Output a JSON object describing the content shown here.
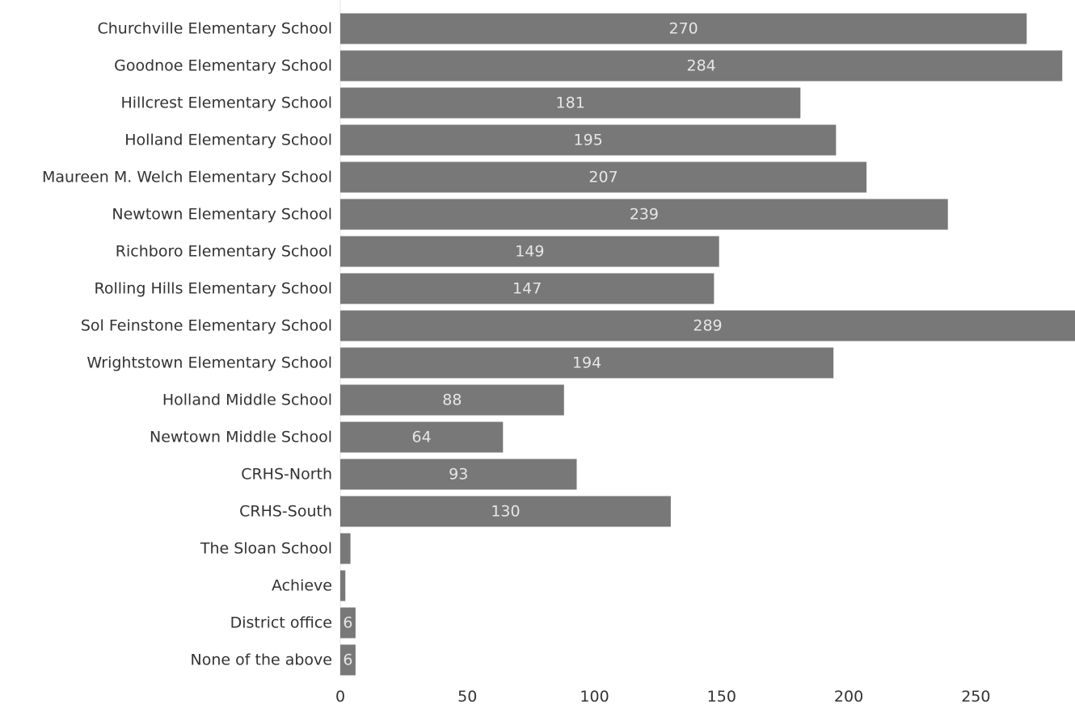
{
  "chart_data": {
    "type": "bar",
    "orientation": "horizontal",
    "title": "",
    "xlabel": "",
    "ylabel": "",
    "categories": [
      "Churchville Elementary School",
      "Goodnoe Elementary School",
      "Hillcrest Elementary School",
      "Holland Elementary School",
      "Maureen M. Welch Elementary School",
      "Newtown Elementary School",
      "Richboro Elementary School",
      "Rolling Hills Elementary School",
      "Sol Feinstone Elementary School",
      "Wrightstown Elementary School",
      "Holland Middle School",
      "Newtown Middle School",
      "CRHS-North",
      "CRHS-South",
      "The Sloan School",
      "Achieve",
      "District office",
      "None of the above"
    ],
    "values": [
      270,
      284,
      181,
      195,
      207,
      239,
      149,
      147,
      289,
      194,
      88,
      64,
      93,
      130,
      4,
      2,
      6,
      6
    ],
    "data_labels": [
      "270",
      "284",
      "181",
      "195",
      "207",
      "239",
      "149",
      "147",
      "289",
      "194",
      "88",
      "64",
      "93",
      "130",
      "",
      "",
      "6",
      "6"
    ],
    "xlim": [
      0,
      289
    ],
    "x_ticks": [
      0,
      50,
      100,
      150,
      200,
      250
    ],
    "grid": false,
    "legend": "none",
    "colors": {
      "bar": "#787878",
      "value_label": "#e6e6e6",
      "text": "#333333",
      "axis_line": "#e3e3e3"
    }
  }
}
